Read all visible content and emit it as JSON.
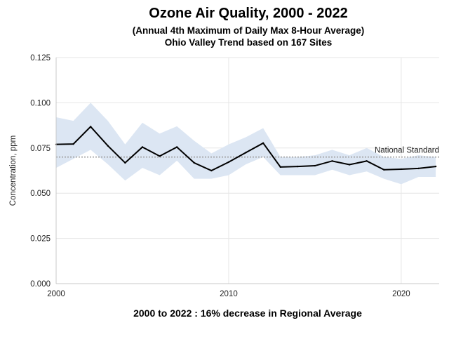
{
  "chart_data": {
    "type": "line",
    "title": "Ozone Air Quality, 2000 - 2022",
    "subtitle_lines": [
      "(Annual 4th Maximum of Daily Max 8-Hour Average)",
      "Ohio Valley Trend based on 167 Sites"
    ],
    "ylabel": "Concentration, ppm",
    "xlabel": "",
    "footer": "2000 to 2022 :  16% decrease in Regional Average",
    "xlim": [
      2000,
      2022.2
    ],
    "ylim": [
      0,
      0.125
    ],
    "x_ticks": [
      2000,
      2010,
      2020
    ],
    "x_tick_labels": [
      "2000",
      "2010",
      "2020"
    ],
    "y_ticks": [
      0,
      0.025,
      0.05,
      0.075,
      0.1,
      0.125
    ],
    "y_tick_labels": [
      "0.000",
      "0.025",
      "0.050",
      "0.075",
      "0.100",
      "0.125"
    ],
    "grid": true,
    "x": [
      2000,
      2001,
      2002,
      2003,
      2004,
      2005,
      2006,
      2007,
      2008,
      2009,
      2010,
      2011,
      2012,
      2013,
      2014,
      2015,
      2016,
      2017,
      2018,
      2019,
      2020,
      2021,
      2022
    ],
    "series": [
      {
        "values": [
          0.077,
          0.0772,
          0.0868,
          0.0762,
          0.0668,
          0.0755,
          0.0705,
          0.0755,
          0.0668,
          0.0625,
          0.0672,
          0.0725,
          0.0777,
          0.0645,
          0.0648,
          0.0652,
          0.0678,
          0.0658,
          0.0678,
          0.063,
          0.0633,
          0.0637,
          0.0648
        ],
        "color": "#000000"
      }
    ],
    "band": {
      "upper": [
        0.092,
        0.09,
        0.1,
        0.09,
        0.077,
        0.089,
        0.083,
        0.087,
        0.079,
        0.072,
        0.077,
        0.081,
        0.086,
        0.07,
        0.07,
        0.071,
        0.074,
        0.071,
        0.075,
        0.07,
        0.069,
        0.071,
        0.07
      ],
      "lower": [
        0.064,
        0.069,
        0.074,
        0.066,
        0.057,
        0.064,
        0.06,
        0.068,
        0.058,
        0.058,
        0.06,
        0.066,
        0.07,
        0.06,
        0.06,
        0.06,
        0.063,
        0.06,
        0.062,
        0.058,
        0.055,
        0.059,
        0.059
      ],
      "color": "#dce6f3"
    },
    "reference_line": {
      "label": "National Standard",
      "value": 0.07,
      "color": "#a0a0a0"
    },
    "grid_color": "#e6e6e6",
    "axis_color": "#c8c8c8"
  }
}
